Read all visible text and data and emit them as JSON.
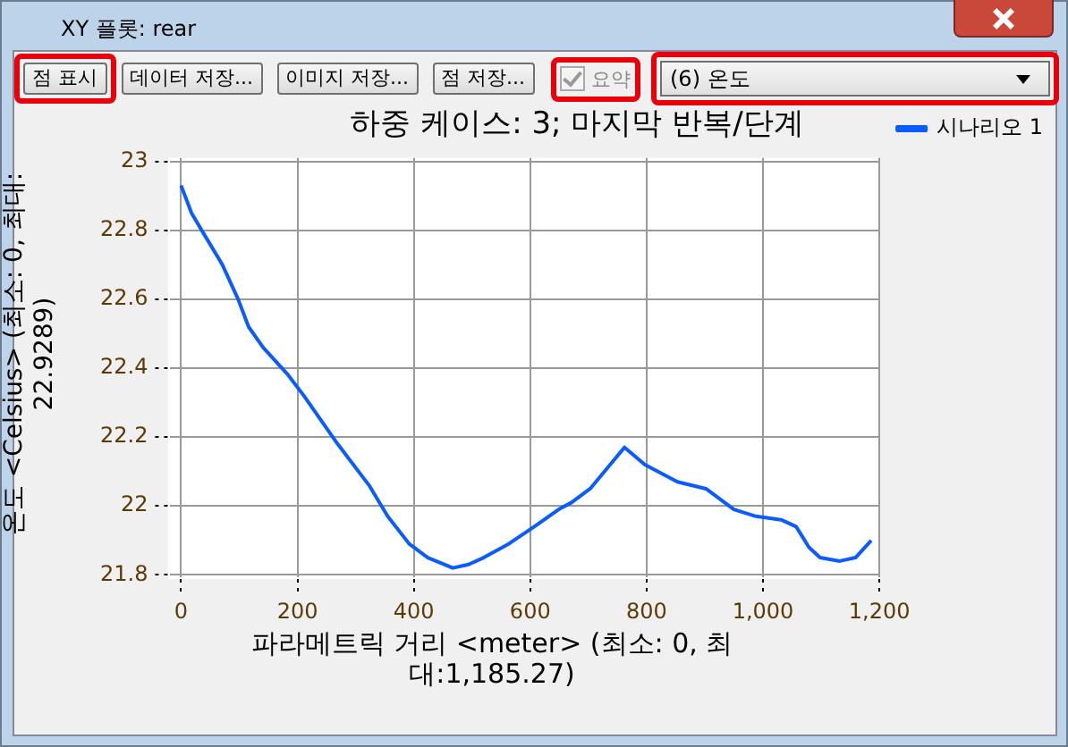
{
  "chart_data": {
    "type": "line",
    "title": "하중 케이스: 3; 마지막 반복/단계",
    "xlabel": "파라메트릭 거리 <meter> (최소: 0, 최대:1,185.27)",
    "ylabel": "온도 <Celsius> (최소: 0, 최대: 22.9289)",
    "annotations": [
      "XY 플롯: rear",
      "점 표시",
      "데이터 저장...",
      "이미지 저장...",
      "점 저장...",
      "요약",
      "(6) 온도"
    ],
    "x": [
      0,
      18,
      39,
      71,
      98,
      116,
      141,
      184,
      211,
      269,
      323,
      355,
      392,
      424,
      467,
      494,
      520,
      563,
      607,
      649,
      671,
      703,
      762,
      797,
      853,
      902,
      950,
      988,
      1031,
      1057,
      1079,
      1098,
      1132,
      1159,
      1186
    ],
    "series": [
      {
        "name": "시나리오 1",
        "color": "#0a5cff",
        "values": [
          22.93,
          22.85,
          22.79,
          22.7,
          22.6,
          22.52,
          22.46,
          22.38,
          22.32,
          22.18,
          22.06,
          21.97,
          21.89,
          21.85,
          21.82,
          21.83,
          21.85,
          21.89,
          21.94,
          21.99,
          22.01,
          22.05,
          22.17,
          22.12,
          22.07,
          22.05,
          21.99,
          21.97,
          21.96,
          21.94,
          21.88,
          21.85,
          21.84,
          21.85,
          21.9
        ]
      }
    ],
    "xlim": [
      -20,
      1200
    ],
    "xticks": [
      0,
      200,
      400,
      600,
      800,
      {
        "value": 1000,
        "label": "1,000"
      },
      {
        "value": 1200,
        "label": "1,200"
      }
    ],
    "ylim": [
      21.79,
      23.01
    ],
    "yticks": [
      21.8,
      22,
      22.2,
      22.4,
      22.6,
      22.8,
      23
    ],
    "grid": true,
    "legend": "top right",
    "marker": "none",
    "line_style": "solid"
  }
}
